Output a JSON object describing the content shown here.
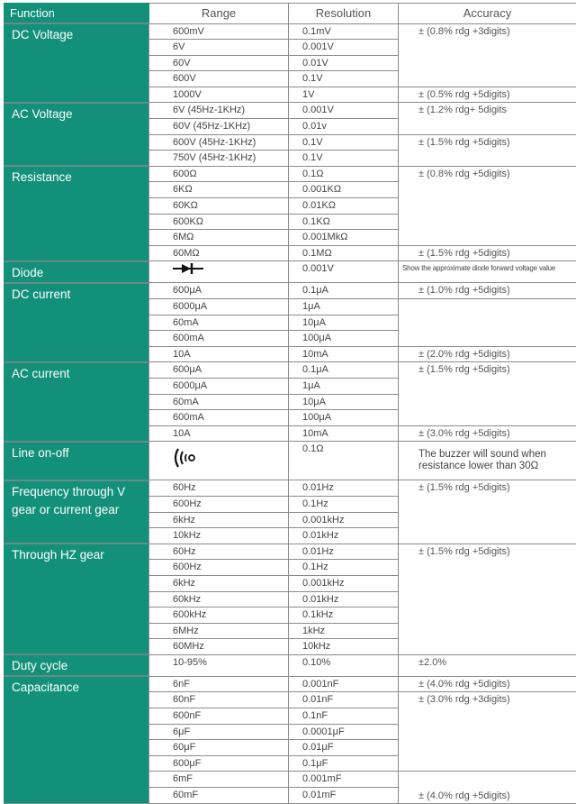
{
  "header": {
    "function": "Function",
    "range": "Range",
    "resolution": "Resolution",
    "accuracy": "Accuracy"
  },
  "colors": {
    "function_bg": "#12907a",
    "border": "#8a8a8a"
  },
  "groups": [
    {
      "function": "DC Voltage",
      "rows": [
        {
          "range": "600mV",
          "resolution": "0.1mV"
        },
        {
          "range": "6V",
          "resolution": "0.001V"
        },
        {
          "range": "60V",
          "resolution": "0.01V"
        },
        {
          "range": "600V",
          "resolution": "0.1V"
        },
        {
          "range": "1000V",
          "resolution": "1V"
        }
      ],
      "accuracy": [
        {
          "text": "± (0.8% rdg +3digits)",
          "span": 4
        },
        {
          "text": "± (0.5% rdg +5digits)",
          "span": 1
        }
      ]
    },
    {
      "function": "AC Voltage",
      "rows": [
        {
          "range": "6V (45Hz-1KHz)",
          "resolution": "0.001V"
        },
        {
          "range": "60V (45Hz-1KHz)",
          "resolution": "0.01v"
        },
        {
          "range": "600V (45Hz-1KHz)",
          "resolution": "0.1V"
        },
        {
          "range": "750V (45Hz-1KHz)",
          "resolution": "0.1V"
        }
      ],
      "accuracy": [
        {
          "text": "± (1.2% rdg+ 5digits",
          "span": 2
        },
        {
          "text": "± (1.5% rdg +5digits)",
          "span": 2
        }
      ]
    },
    {
      "function": "Resistance",
      "rows": [
        {
          "range": "600Ω",
          "resolution": "0.1Ω"
        },
        {
          "range": "6KΩ",
          "resolution": "0.001KΩ"
        },
        {
          "range": "60KΩ",
          "resolution": "0.01KΩ"
        },
        {
          "range": "600KΩ",
          "resolution": "0.1KΩ"
        },
        {
          "range": "6MΩ",
          "resolution": "0.001MkΩ"
        },
        {
          "range": "60MΩ",
          "resolution": "0.1MΩ"
        }
      ],
      "accuracy": [
        {
          "text": "± (0.8% rdg +5digits)",
          "span": 5
        },
        {
          "text": "± (1.5% rdg +5digits)",
          "span": 1
        }
      ]
    },
    {
      "function": "Diode",
      "rows": [
        {
          "range_icon": "diode-icon",
          "resolution": "0.001V"
        }
      ],
      "accuracy": [
        {
          "text": "Show the approximate diode forward voltage value",
          "span": 1,
          "style": "note"
        }
      ]
    },
    {
      "function": "DC current",
      "rows": [
        {
          "range": "600μA",
          "resolution": "0.1μA"
        },
        {
          "range": "6000μA",
          "resolution": "1μA"
        },
        {
          "range": "60mA",
          "resolution": "10μA"
        },
        {
          "range": "600mA",
          "resolution": "100μA"
        },
        {
          "range": "10A",
          "resolution": "10mA"
        }
      ],
      "accuracy": [
        {
          "text": "± (1.0% rdg +5digits)",
          "span": 1
        },
        {
          "text": "",
          "span": 3
        },
        {
          "text": "± (2.0% rdg +5digits)",
          "span": 1
        }
      ]
    },
    {
      "function": "AC current",
      "rows": [
        {
          "range": "600μA",
          "resolution": "0.1μA"
        },
        {
          "range": "6000μA",
          "resolution": "1μA"
        },
        {
          "range": "60mA",
          "resolution": "10μA"
        },
        {
          "range": "600mA",
          "resolution": "100μA"
        },
        {
          "range": "10A",
          "resolution": "10mA"
        }
      ],
      "accuracy": [
        {
          "text": "± (1.5% rdg +5digits)",
          "span": 4
        },
        {
          "text": "± (3.0% rdg +5digits)",
          "span": 1
        }
      ]
    },
    {
      "function": "Line on-off",
      "tall": true,
      "rows": [
        {
          "range_icon": "buzzer-icon",
          "resolution": "0.1Ω"
        }
      ],
      "accuracy": [
        {
          "text": "The buzzer will sound when resistance lower than 30Ω",
          "span": 1,
          "style": "buzz"
        }
      ]
    },
    {
      "function": "Frequency through V gear or current gear",
      "rows": [
        {
          "range": "60Hz",
          "resolution": "0.01Hz"
        },
        {
          "range": "600Hz",
          "resolution": "0.1Hz"
        },
        {
          "range": "6kHz",
          "resolution": "0.001kHz"
        },
        {
          "range": "10kHz",
          "resolution": "0.01kHz"
        }
      ],
      "accuracy": [
        {
          "text": "± (1.5% rdg +5digits)",
          "span": 4
        }
      ]
    },
    {
      "function": "Through HZ gear",
      "rows": [
        {
          "range": "60Hz",
          "resolution": "0.01Hz"
        },
        {
          "range": "600Hz",
          "resolution": "0.1Hz"
        },
        {
          "range": "6kHz",
          "resolution": "0.001kHz"
        },
        {
          "range": "60kHz",
          "resolution": "0.01kHz"
        },
        {
          "range": "600kHz",
          "resolution": "0.1kHz"
        },
        {
          "range": "6MHz",
          "resolution": "1kHz"
        },
        {
          "range": "60MHz",
          "resolution": "10kHz"
        }
      ],
      "accuracy": [
        {
          "text": "± (1.5% rdg +5digits)",
          "span": 7
        }
      ]
    },
    {
      "function": "Duty cycle",
      "rows": [
        {
          "range": "10-95%",
          "resolution": "0.10%"
        }
      ],
      "accuracy": [
        {
          "text": "±2.0%",
          "span": 1
        }
      ]
    },
    {
      "function": "Capacitance",
      "rows": [
        {
          "range": "6nF",
          "resolution": "0.001nF"
        },
        {
          "range": "60nF",
          "resolution": "0.01nF"
        },
        {
          "range": "600nF",
          "resolution": "0.1nF"
        },
        {
          "range": "6μF",
          "resolution": "0.0001μF"
        },
        {
          "range": "60μF",
          "resolution": "0.01μF"
        },
        {
          "range": "600μF",
          "resolution": "0.1μF"
        },
        {
          "range": "6mF",
          "resolution": "0.001mF"
        },
        {
          "range": "60mF",
          "resolution": "0.01mF"
        }
      ],
      "accuracy": [
        {
          "text": "± (4.0% rdg +5digits)",
          "span": 1
        },
        {
          "text": "± (3.0% rdg +3digits)",
          "span": 5
        },
        {
          "text": "± (4.0% rdg +5digits)",
          "span": 2,
          "style": "bottom"
        }
      ]
    }
  ]
}
